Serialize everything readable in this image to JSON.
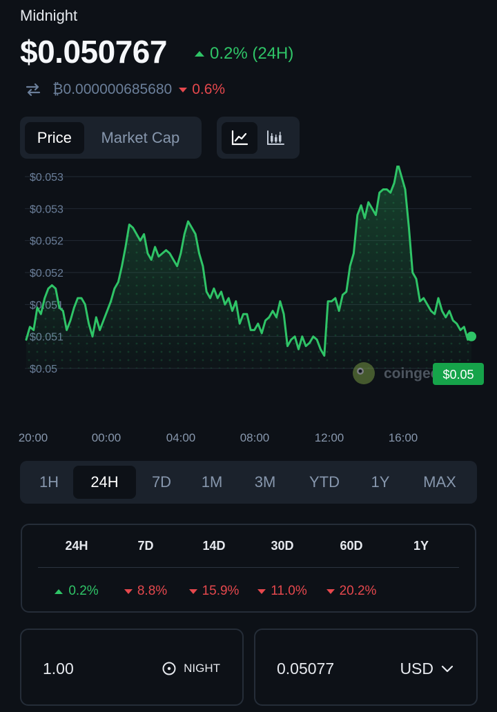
{
  "coin": {
    "name": "Midnight",
    "price": "$0.050767",
    "change_24h": "0.2% (24H)",
    "btc_price": "₿0.000000685680",
    "btc_change": "0.6%"
  },
  "view_tabs": {
    "price": "Price",
    "market_cap": "Market Cap",
    "active": "Price"
  },
  "chart_type_buttons": [
    "line-chart-icon",
    "candlestick-icon"
  ],
  "chart_data": {
    "type": "area",
    "y_tick_labels": [
      "$0.053",
      "$0.053",
      "$0.052",
      "$0.052",
      "$0.051",
      "$0.051",
      "$0.05"
    ],
    "x_tick_labels": [
      "20:00",
      "00:00",
      "04:00",
      "08:00",
      "12:00",
      "16:00"
    ],
    "ylim": [
      0.05,
      0.053
    ],
    "current_price_label": "$0.05",
    "watermark": "coingecko",
    "series": [
      {
        "values": [
          0.05045,
          0.05065,
          0.0506,
          0.05095,
          0.05085,
          0.0511,
          0.05125,
          0.0513,
          0.05125,
          0.05095,
          0.0509,
          0.0506,
          0.05075,
          0.05095,
          0.0511,
          0.0511,
          0.051,
          0.0507,
          0.0505,
          0.0508,
          0.0506,
          0.05075,
          0.0509,
          0.05105,
          0.05125,
          0.05135,
          0.0516,
          0.0519,
          0.05225,
          0.0522,
          0.0521,
          0.052,
          0.0521,
          0.0518,
          0.0517,
          0.0519,
          0.05175,
          0.0518,
          0.05185,
          0.0518,
          0.0517,
          0.0516,
          0.0518,
          0.0521,
          0.0523,
          0.0522,
          0.0521,
          0.0518,
          0.0516,
          0.0512,
          0.0511,
          0.05125,
          0.0511,
          0.0512,
          0.051,
          0.0511,
          0.0509,
          0.05105,
          0.0507,
          0.05085,
          0.05085,
          0.0506,
          0.0506,
          0.0507,
          0.05055,
          0.05075,
          0.0508,
          0.0509,
          0.0508,
          0.05105,
          0.05085,
          0.05035,
          0.05045,
          0.0505,
          0.0503,
          0.0505,
          0.05035,
          0.0504,
          0.0505,
          0.05045,
          0.0503,
          0.0502,
          0.05105,
          0.05105,
          0.0511,
          0.0509,
          0.05115,
          0.0512,
          0.0516,
          0.0518,
          0.0524,
          0.05255,
          0.05235,
          0.0526,
          0.0525,
          0.0524,
          0.05275,
          0.0528,
          0.0528,
          0.05275,
          0.0529,
          0.0532,
          0.053,
          0.0528,
          0.0522,
          0.0515,
          0.0514,
          0.05105,
          0.0511,
          0.051,
          0.0509,
          0.05085,
          0.0511,
          0.0509,
          0.0508,
          0.0509,
          0.05075,
          0.0507,
          0.0506,
          0.05065,
          0.05045,
          0.0505
        ]
      }
    ]
  },
  "ranges": [
    "1H",
    "24H",
    "7D",
    "1M",
    "3M",
    "YTD",
    "1Y",
    "MAX"
  ],
  "active_range": "24H",
  "performance": [
    {
      "period": "24H",
      "value": "0.2%",
      "dir": "up"
    },
    {
      "period": "7D",
      "value": "8.8%",
      "dir": "down"
    },
    {
      "period": "14D",
      "value": "15.9%",
      "dir": "down"
    },
    {
      "period": "30D",
      "value": "11.0%",
      "dir": "down"
    },
    {
      "period": "60D",
      "value": "20.2%",
      "dir": "down"
    },
    {
      "period": "1Y",
      "value": "",
      "dir": ""
    }
  ],
  "converter": {
    "amount": "1.00",
    "token": "NIGHT",
    "result": "0.05077",
    "currency": "USD"
  },
  "colors": {
    "background": "#0d1117",
    "up": "#2fc467",
    "down": "#e5484d",
    "panel": "#1b222c"
  }
}
